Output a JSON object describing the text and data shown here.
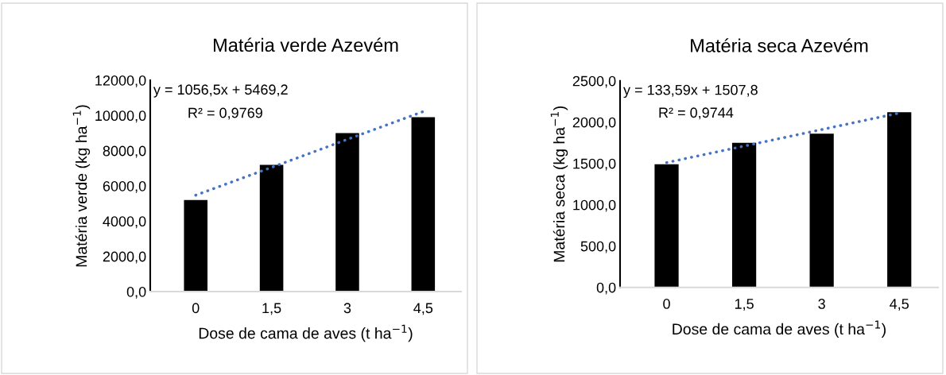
{
  "chart_data": [
    {
      "type": "bar",
      "title": "Matéria verde Azevém",
      "xlabel": "Dose de cama de aves (t ha$^{−1}$)",
      "ylabel": "Matéria verde (kg ha$^{−1}$)",
      "categories": [
        "0",
        "1,5",
        "3",
        "4,5"
      ],
      "series": [
        {
          "color": "#000000",
          "values": [
            5200,
            7200,
            9000,
            9900
          ]
        },
        {
          "type": "line",
          "color": "#4472c4",
          "line_style": "dotted",
          "values": [
            5470,
            7050,
            8640,
            10220
          ]
        }
      ],
      "ylim": [
        0,
        12000
      ],
      "yticks": [
        {
          "value": 0,
          "label": "0,0"
        },
        {
          "value": 2000,
          "label": "2000,0"
        },
        {
          "value": 4000,
          "label": "4000,0"
        },
        {
          "value": 6000,
          "label": "6000,0"
        },
        {
          "value": 8000,
          "label": "8000,0"
        },
        {
          "value": 10000,
          "label": "10000,0"
        },
        {
          "value": 12000,
          "label": "12000,0"
        }
      ],
      "annotations": [
        "y = 1056,5x + 5469,2",
        "R² = 0,9769"
      ],
      "grid": false
    },
    {
      "type": "bar",
      "title": "Matéria seca Azevém",
      "xlabel": "Dose de cama de aves (t ha$^{−1}$)",
      "ylabel": "Matéria seca (kg ha$^{−1}$)",
      "categories": [
        "0",
        "1,5",
        "3",
        "4,5"
      ],
      "series": [
        {
          "color": "#000000",
          "values": [
            1490,
            1750,
            1860,
            2120
          ]
        },
        {
          "type": "line",
          "color": "#4472c4",
          "line_style": "dotted",
          "values": [
            1510,
            1710,
            1910,
            2110
          ]
        }
      ],
      "ylim": [
        0,
        2500
      ],
      "yticks": [
        {
          "value": 0,
          "label": "0,0"
        },
        {
          "value": 500,
          "label": "500,0"
        },
        {
          "value": 1000,
          "label": "1000,0"
        },
        {
          "value": 1500,
          "label": "1500,0"
        },
        {
          "value": 2000,
          "label": "2000,0"
        },
        {
          "value": 2500,
          "label": "2500,0"
        }
      ],
      "annotations": [
        "y = 133,59x + 1507,8",
        "R² = 0,9744"
      ],
      "grid": false
    }
  ]
}
